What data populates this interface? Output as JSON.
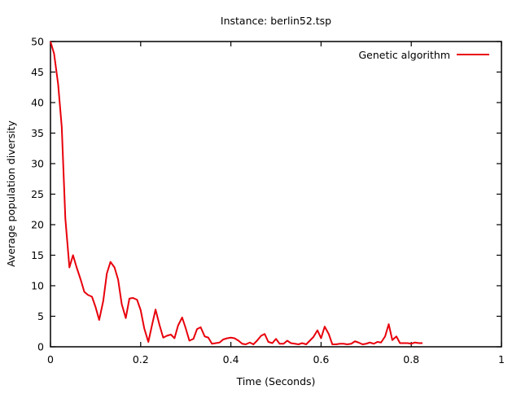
{
  "chart_data": {
    "type": "line",
    "title": "Instance: berlin52.tsp",
    "xlabel": "Time (Seconds)",
    "ylabel": "Average population diversity",
    "xlim": [
      0,
      1
    ],
    "ylim": [
      0,
      50
    ],
    "x_ticks": [
      0,
      0.2,
      0.4,
      0.6,
      0.8,
      1
    ],
    "x_tick_labels": [
      "0",
      "0.2",
      "0.4",
      "0.6",
      "0.8",
      "1"
    ],
    "y_ticks": [
      0,
      5,
      10,
      15,
      20,
      25,
      30,
      35,
      40,
      45,
      50
    ],
    "y_tick_labels": [
      "0",
      "5",
      "10",
      "15",
      "20",
      "25",
      "30",
      "35",
      "40",
      "45",
      "50"
    ],
    "grid": false,
    "legend_position": "top-right",
    "series": [
      {
        "name": "Genetic algorithm",
        "color": "#e8000b",
        "points": [
          [
            0.0,
            50.0
          ],
          [
            0.008,
            48.0
          ],
          [
            0.017,
            43.0
          ],
          [
            0.025,
            36.0
          ],
          [
            0.033,
            21.0
          ],
          [
            0.042,
            13.0
          ],
          [
            0.05,
            15.0
          ],
          [
            0.058,
            13.0
          ],
          [
            0.067,
            11.0
          ],
          [
            0.075,
            9.0
          ],
          [
            0.083,
            8.5
          ],
          [
            0.092,
            8.2
          ],
          [
            0.1,
            6.5
          ],
          [
            0.108,
            4.4
          ],
          [
            0.117,
            7.5
          ],
          [
            0.125,
            12.0
          ],
          [
            0.133,
            13.9
          ],
          [
            0.142,
            13.0
          ],
          [
            0.15,
            11.0
          ],
          [
            0.158,
            7.0
          ],
          [
            0.167,
            4.7
          ],
          [
            0.175,
            7.9
          ],
          [
            0.183,
            8.0
          ],
          [
            0.192,
            7.7
          ],
          [
            0.2,
            6.0
          ],
          [
            0.208,
            3.0
          ],
          [
            0.217,
            0.8
          ],
          [
            0.225,
            3.5
          ],
          [
            0.233,
            6.1
          ],
          [
            0.242,
            3.5
          ],
          [
            0.25,
            1.5
          ],
          [
            0.258,
            1.8
          ],
          [
            0.267,
            2.0
          ],
          [
            0.275,
            1.4
          ],
          [
            0.283,
            3.5
          ],
          [
            0.292,
            4.8
          ],
          [
            0.3,
            3.0
          ],
          [
            0.308,
            1.0
          ],
          [
            0.317,
            1.3
          ],
          [
            0.325,
            2.9
          ],
          [
            0.333,
            3.2
          ],
          [
            0.342,
            1.7
          ],
          [
            0.35,
            1.5
          ],
          [
            0.358,
            0.5
          ],
          [
            0.367,
            0.6
          ],
          [
            0.375,
            0.7
          ],
          [
            0.383,
            1.2
          ],
          [
            0.392,
            1.4
          ],
          [
            0.4,
            1.5
          ],
          [
            0.408,
            1.4
          ],
          [
            0.417,
            1.0
          ],
          [
            0.425,
            0.5
          ],
          [
            0.433,
            0.4
          ],
          [
            0.442,
            0.7
          ],
          [
            0.45,
            0.4
          ],
          [
            0.458,
            1.0
          ],
          [
            0.467,
            1.8
          ],
          [
            0.475,
            2.1
          ],
          [
            0.483,
            0.8
          ],
          [
            0.492,
            0.6
          ],
          [
            0.5,
            1.3
          ],
          [
            0.508,
            0.5
          ],
          [
            0.517,
            0.5
          ],
          [
            0.525,
            1.0
          ],
          [
            0.533,
            0.6
          ],
          [
            0.542,
            0.5
          ],
          [
            0.55,
            0.4
          ],
          [
            0.558,
            0.6
          ],
          [
            0.567,
            0.4
          ],
          [
            0.575,
            1.0
          ],
          [
            0.583,
            1.6
          ],
          [
            0.592,
            2.7
          ],
          [
            0.6,
            1.4
          ],
          [
            0.608,
            3.3
          ],
          [
            0.617,
            2.1
          ],
          [
            0.625,
            0.4
          ],
          [
            0.633,
            0.4
          ],
          [
            0.642,
            0.5
          ],
          [
            0.65,
            0.5
          ],
          [
            0.658,
            0.4
          ],
          [
            0.667,
            0.5
          ],
          [
            0.675,
            0.9
          ],
          [
            0.683,
            0.7
          ],
          [
            0.692,
            0.4
          ],
          [
            0.7,
            0.5
          ],
          [
            0.708,
            0.7
          ],
          [
            0.717,
            0.5
          ],
          [
            0.725,
            0.8
          ],
          [
            0.733,
            0.7
          ],
          [
            0.742,
            1.7
          ],
          [
            0.75,
            3.7
          ],
          [
            0.758,
            1.1
          ],
          [
            0.767,
            1.7
          ],
          [
            0.775,
            0.6
          ],
          [
            0.783,
            0.6
          ],
          [
            0.792,
            0.6
          ],
          [
            0.8,
            0.5
          ],
          [
            0.808,
            0.7
          ],
          [
            0.817,
            0.6
          ],
          [
            0.825,
            0.6
          ]
        ]
      }
    ]
  }
}
